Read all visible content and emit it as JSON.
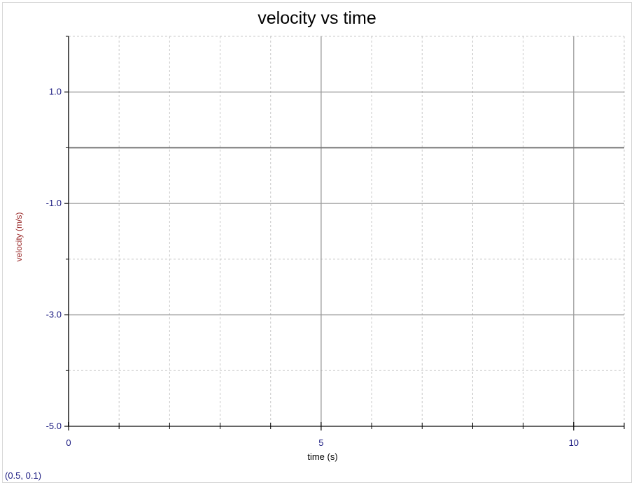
{
  "chart_data": {
    "type": "line",
    "title": "velocity vs time",
    "xlabel": "time (s)",
    "ylabel": "velocity (m/s)",
    "xlim": [
      0,
      11
    ],
    "ylim": [
      -5,
      2
    ],
    "x_ticks": [
      0,
      5,
      10
    ],
    "x_tick_labels": [
      "0",
      "5",
      "10"
    ],
    "x_minor_ticks": [
      1,
      2,
      3,
      4,
      6,
      7,
      8,
      9,
      11
    ],
    "y_ticks": [
      1.0,
      -1.0,
      -3.0,
      -5.0
    ],
    "y_tick_labels": [
      "1.0",
      "-1.0",
      "-3.0",
      "-5.0"
    ],
    "y_minor_ticks": [
      2,
      0,
      -2,
      -4
    ],
    "grid": true,
    "series": []
  },
  "readout": "(0.5, 0.1)",
  "colors": {
    "major_grid": "#999999",
    "minor_grid": "#c8c8c8",
    "zero_line": "#777777",
    "tick_label": "#1a1a80",
    "ylabel": "#9a2a2a"
  }
}
